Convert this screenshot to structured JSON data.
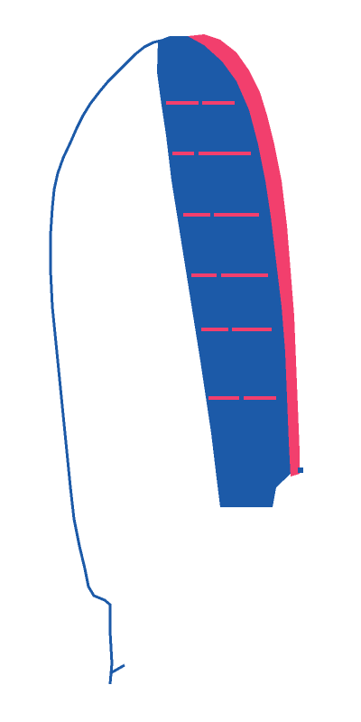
{
  "colors": {
    "background": "#ffffff",
    "outline": "#1c5aa8",
    "fill_primary": "#1c5aa8",
    "accent": "#f23f6d",
    "markings": "#f23f6d"
  },
  "icons": {
    "main_shape": "curved-surfboard-shape",
    "outline_line": "thin-curved-outline-line",
    "edge_stripe": "accent-edge-stripe",
    "markings": "dash-markings"
  }
}
